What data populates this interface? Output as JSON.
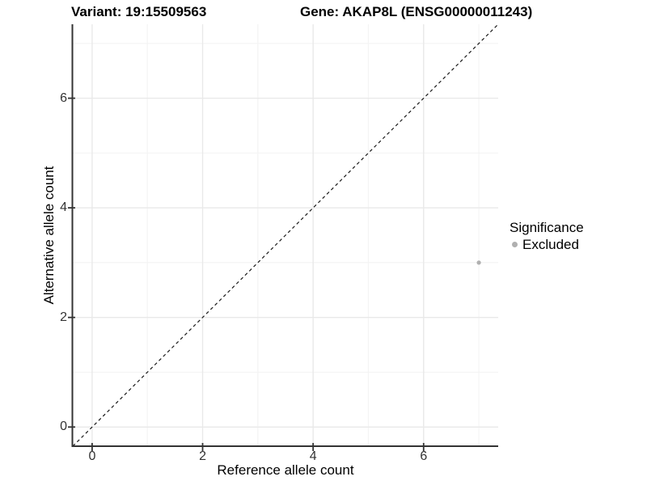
{
  "titles": {
    "variant": "Variant: 19:15509563",
    "gene": "Gene: AKAP8L (ENSG00000011243)"
  },
  "chart_data": {
    "type": "scatter",
    "xlabel": "Reference allele count",
    "ylabel": "Alternative allele count",
    "xlim": [
      -0.35,
      7.35
    ],
    "ylim": [
      -0.35,
      7.35
    ],
    "x_major_ticks": [
      0,
      2,
      4,
      6
    ],
    "y_major_ticks": [
      0,
      2,
      4,
      6
    ],
    "x_minor_ticks": [
      1,
      3,
      5,
      7
    ],
    "y_minor_ticks": [
      1,
      3,
      5,
      7
    ],
    "grid": true,
    "identity_line": {
      "shown": true,
      "slope": 1,
      "intercept": 0,
      "style": "dashed",
      "color": "#1a1a1a"
    },
    "points": [
      {
        "x": 7,
        "y": 3,
        "series": "Excluded"
      }
    ],
    "series_colors": {
      "Excluded": "#b0b0b0"
    },
    "colors": {
      "axis_line": "#333333",
      "tick_mark": "#333333",
      "grid_major": "#e9e9e9",
      "grid_minor": "#f4f4f4",
      "point": "#b0b0b0"
    }
  },
  "legend": {
    "title": "Significance",
    "position": "right",
    "items": [
      {
        "label": "Excluded",
        "color": "#b0b0b0"
      }
    ]
  }
}
